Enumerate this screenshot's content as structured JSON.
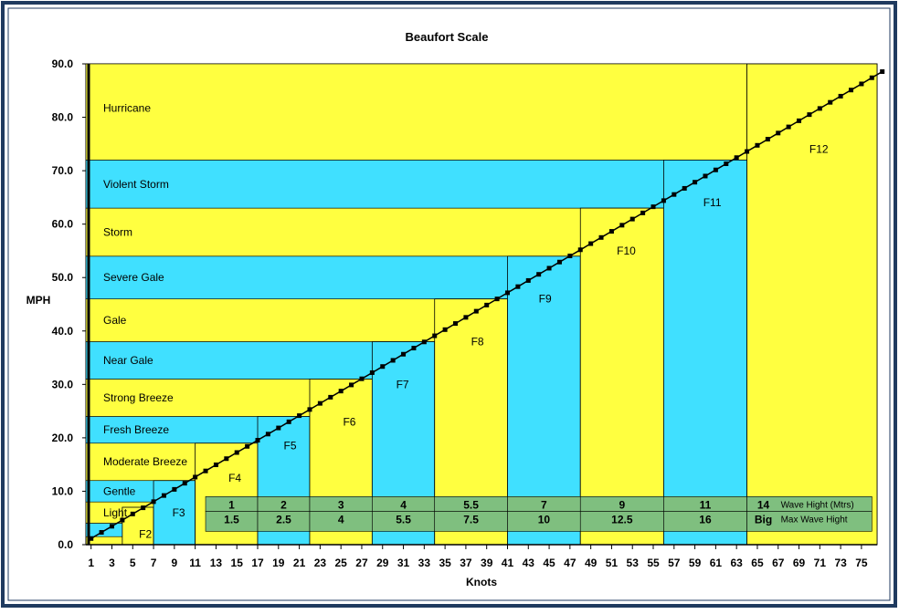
{
  "chart_data": {
    "type": "line",
    "title": "Beaufort Scale",
    "xlabel": "Knots",
    "ylabel": "MPH",
    "xlim": [
      0.5,
      76.5
    ],
    "ylim": [
      0,
      90
    ],
    "x_ticks": [
      1,
      3,
      5,
      7,
      9,
      11,
      13,
      15,
      17,
      19,
      21,
      23,
      25,
      27,
      29,
      31,
      33,
      35,
      37,
      39,
      41,
      43,
      45,
      47,
      49,
      51,
      53,
      55,
      57,
      59,
      61,
      63,
      65,
      67,
      69,
      71,
      73,
      75
    ],
    "y_ticks": [
      "0.0",
      "10.0",
      "20.0",
      "30.0",
      "40.0",
      "50.0",
      "60.0",
      "70.0",
      "80.0",
      "90.0"
    ],
    "series": [
      {
        "x_start": 1,
        "x_end": 77,
        "step": 1,
        "mph_per_knot": 1.15
      }
    ],
    "bands": [
      {
        "label": "Light",
        "y0": 4,
        "y1": 8,
        "color": "#ffff40"
      },
      {
        "label": "Gentle",
        "y0": 8,
        "y1": 12,
        "color": "#40e0ff"
      },
      {
        "label": "Moderate Breeze",
        "y0": 12,
        "y1": 19,
        "color": "#ffff40"
      },
      {
        "label": "Fresh Breeze",
        "y0": 19,
        "y1": 24,
        "color": "#40e0ff"
      },
      {
        "label": "Strong Breeze",
        "y0": 24,
        "y1": 31,
        "color": "#ffff40"
      },
      {
        "label": "Near Gale",
        "y0": 31,
        "y1": 38,
        "color": "#40e0ff"
      },
      {
        "label": "Gale",
        "y0": 38,
        "y1": 46,
        "color": "#ffff40"
      },
      {
        "label": "Severe Gale",
        "y0": 46,
        "y1": 54,
        "color": "#40e0ff"
      },
      {
        "label": "Storm",
        "y0": 54,
        "y1": 63,
        "color": "#ffff40"
      },
      {
        "label": "Violent Storm",
        "y0": 63,
        "y1": 72,
        "color": "#40e0ff"
      },
      {
        "label": "Hurricane",
        "y0": 72,
        "y1": 90,
        "color": "#ffff40"
      }
    ],
    "forces": [
      {
        "label": "F2",
        "x0": 4,
        "x1": 7,
        "y1": 7,
        "color": "#ffff40",
        "label_x": 5.6,
        "label_y": 2
      },
      {
        "label": "F3",
        "x0": 7,
        "x1": 11,
        "y1": 12,
        "color": "#40e0ff",
        "label_x": 8.8,
        "label_y": 6
      },
      {
        "label": "F4",
        "x0": 11,
        "x1": 17,
        "y1": 19,
        "color": "#ffff40",
        "label_x": 14.2,
        "label_y": 12.5
      },
      {
        "label": "F5",
        "x0": 17,
        "x1": 22,
        "y1": 24,
        "color": "#40e0ff",
        "label_x": 19.5,
        "label_y": 18.5
      },
      {
        "label": "F6",
        "x0": 22,
        "x1": 28,
        "y1": 31,
        "color": "#ffff40",
        "label_x": 25.2,
        "label_y": 23
      },
      {
        "label": "F7",
        "x0": 28,
        "x1": 34,
        "y1": 38,
        "color": "#40e0ff",
        "label_x": 30.3,
        "label_y": 30
      },
      {
        "label": "F8",
        "x0": 34,
        "x1": 41,
        "y1": 46,
        "color": "#ffff40",
        "label_x": 37.5,
        "label_y": 38
      },
      {
        "label": "F9",
        "x0": 41,
        "x1": 48,
        "y1": 54,
        "color": "#40e0ff",
        "label_x": 44,
        "label_y": 46
      },
      {
        "label": "F10",
        "x0": 48,
        "x1": 56,
        "y1": 63,
        "color": "#ffff40",
        "label_x": 51.5,
        "label_y": 55
      },
      {
        "label": "F11",
        "x0": 56,
        "x1": 64,
        "y1": 72,
        "color": "#40e0ff",
        "label_x": 59.8,
        "label_y": 64
      },
      {
        "label": "F12",
        "x0": 64,
        "x1": 76.5,
        "y1": 90,
        "color": "#ffff40",
        "label_x": 70,
        "label_y": 74
      }
    ],
    "wave_table": {
      "row_label_1": "Wave Hight (Mtrs)",
      "row_label_2": "Max Wave Hight",
      "columns": [
        {
          "x0": 12,
          "x1": 17,
          "wave": "1",
          "max": "1.5"
        },
        {
          "x0": 17,
          "x1": 22,
          "wave": "2",
          "max": "2.5"
        },
        {
          "x0": 22,
          "x1": 28,
          "wave": "3",
          "max": "4"
        },
        {
          "x0": 28,
          "x1": 34,
          "wave": "4",
          "max": "5.5"
        },
        {
          "x0": 34,
          "x1": 41,
          "wave": "5.5",
          "max": "7.5"
        },
        {
          "x0": 41,
          "x1": 48,
          "wave": "7",
          "max": "10"
        },
        {
          "x0": 48,
          "x1": 56,
          "wave": "9",
          "max": "12.5"
        },
        {
          "x0": 56,
          "x1": 64,
          "wave": "11",
          "max": "16"
        },
        {
          "x0": 64,
          "x1": 76,
          "wave": "14",
          "max": "Big"
        }
      ]
    },
    "colors": {
      "yellow": "#ffff40",
      "cyan": "#40e0ff",
      "table": "#7fbf7f",
      "frame": "#1f3a5f"
    }
  }
}
